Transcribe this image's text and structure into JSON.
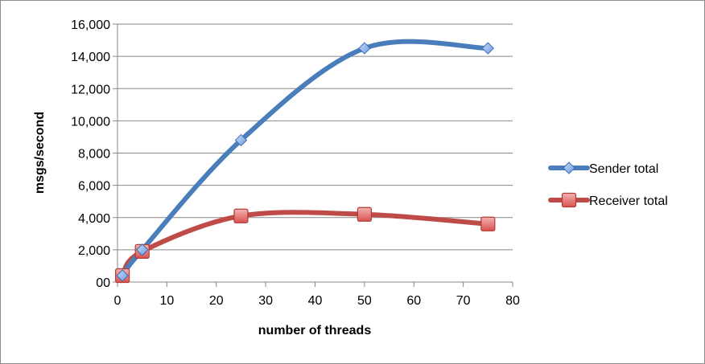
{
  "chart_data": {
    "type": "line",
    "title": "",
    "xlabel": "number of threads",
    "ylabel": "msgs/second",
    "xlim": [
      0,
      80
    ],
    "ylim": [
      0,
      16000
    ],
    "x_ticks": [
      0,
      10,
      20,
      30,
      40,
      50,
      60,
      70,
      80
    ],
    "y_ticks": [
      0,
      2000,
      4000,
      6000,
      8000,
      10000,
      12000,
      14000,
      16000
    ],
    "x_tick_labels": [
      "0",
      "10",
      "20",
      "30",
      "40",
      "50",
      "60",
      "70",
      "80"
    ],
    "y_tick_labels": [
      "00",
      "2,000",
      "4,000",
      "6,000",
      "8,000",
      "10,000",
      "12,000",
      "14,000",
      "16,000"
    ],
    "grid": "horizontal",
    "legend_position": "right",
    "series": [
      {
        "name": "Sender total",
        "color": "#4a7ebb",
        "marker": "diamond",
        "x": [
          1,
          5,
          25,
          50,
          75
        ],
        "values": [
          400,
          2000,
          8800,
          14500,
          14500
        ]
      },
      {
        "name": "Receiver total",
        "color": "#be4b48",
        "marker": "square",
        "x": [
          1,
          5,
          25,
          50,
          75
        ],
        "values": [
          400,
          1900,
          4100,
          4200,
          3600
        ]
      }
    ]
  }
}
